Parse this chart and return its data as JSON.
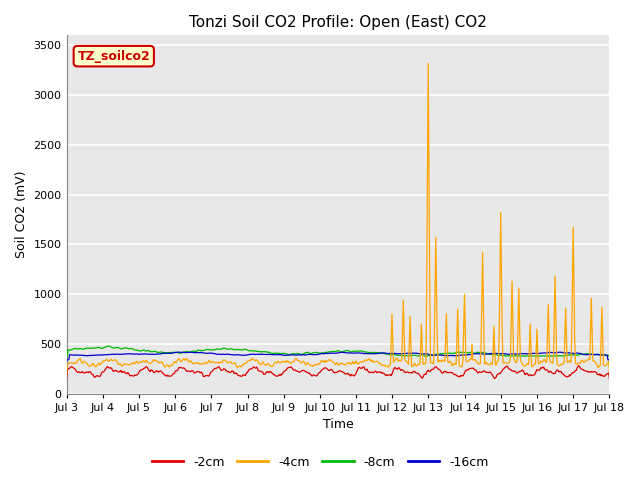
{
  "title": "Tonzi Soil CO2 Profile: Open (East) CO2",
  "ylabel": "Soil CO2 (mV)",
  "xlabel": "Time",
  "xlim_days": [
    3,
    18
  ],
  "ylim": [
    0,
    3600
  ],
  "yticks": [
    0,
    500,
    1000,
    1500,
    2000,
    2500,
    3000,
    3500
  ],
  "xtick_labels": [
    "Jul 3",
    "Jul 4",
    "Jul 5",
    "Jul 6",
    "Jul 7",
    "Jul 8",
    "Jul 9",
    "Jul 10",
    "Jul 11",
    "Jul 12",
    "Jul 13",
    "Jul 14",
    "Jul 15",
    "Jul 16",
    "Jul 17",
    "Jul 18"
  ],
  "legend_label": "TZ_soilco2",
  "legend_box_bg": "#ffffcc",
  "legend_box_edge": "#cc0000",
  "colors": {
    "2cm": "#dd0000",
    "4cm": "#ffa500",
    "8cm": "#00bb00",
    "16cm": "#0000cc"
  },
  "line_labels": [
    "-2cm",
    "-4cm",
    "-8cm",
    "-16cm"
  ],
  "plot_bg_color": "#e8e8e8",
  "fig_bg_color": "#ffffff",
  "grid_color": "#ffffff",
  "title_fontsize": 11,
  "label_fontsize": 9,
  "tick_fontsize": 8,
  "legend_fontsize": 9
}
